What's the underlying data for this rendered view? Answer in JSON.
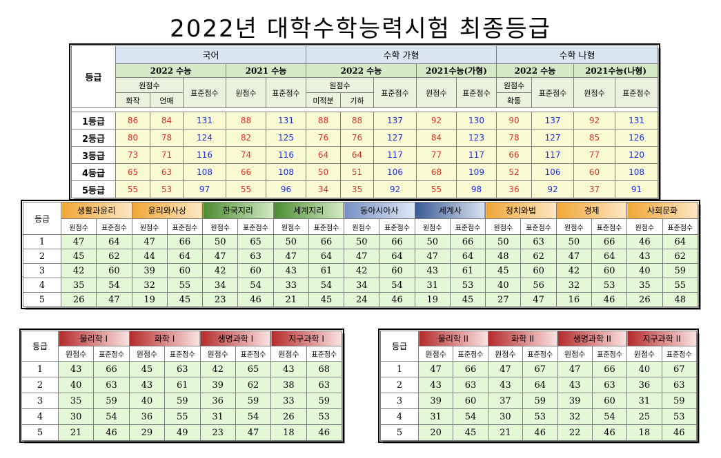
{
  "title": "2022년 대학수학능력시험 최종등급",
  "korean_math": {
    "grade_header": "등급",
    "subjects": [
      "국어",
      "수학 가형",
      "수학 나형"
    ],
    "years": [
      "2022 수능",
      "2021 수능",
      "2022 수능",
      "2021수능(가형)",
      "2022 수능",
      "2021수능(나형)"
    ],
    "raw_label": "원점수",
    "std_label": "표준점수",
    "raw_sub_korean": [
      "화작",
      "언매"
    ],
    "raw_sub_math_ga": [
      "미적분",
      "기하"
    ],
    "raw_sub_math_na": "확통",
    "rows": [
      {
        "label": "1등급",
        "v": [
          "86",
          "84",
          "131",
          "88",
          "131",
          "88",
          "88",
          "137",
          "92",
          "130",
          "90",
          "137",
          "92",
          "131"
        ]
      },
      {
        "label": "2등급",
        "v": [
          "80",
          "78",
          "124",
          "82",
          "125",
          "76",
          "76",
          "127",
          "84",
          "123",
          "78",
          "127",
          "85",
          "126"
        ]
      },
      {
        "label": "3등급",
        "v": [
          "73",
          "71",
          "116",
          "74",
          "116",
          "64",
          "64",
          "117",
          "77",
          "117",
          "66",
          "117",
          "77",
          "120"
        ]
      },
      {
        "label": "4등급",
        "v": [
          "65",
          "63",
          "108",
          "66",
          "108",
          "50",
          "51",
          "106",
          "68",
          "109",
          "52",
          "106",
          "60",
          "108"
        ]
      },
      {
        "label": "5등급",
        "v": [
          "55",
          "53",
          "97",
          "55",
          "96",
          "34",
          "35",
          "92",
          "55",
          "98",
          "36",
          "92",
          "37",
          "91"
        ]
      }
    ],
    "value_colors": {
      "raw": "#d9352b",
      "std": "#1c2fd6"
    }
  },
  "social": {
    "grade_header": "등급",
    "subjects": [
      "생활과윤리",
      "윤리와사상",
      "한국지리",
      "세계지리",
      "동아시아사",
      "세계사",
      "정치와법",
      "경제",
      "사회문화"
    ],
    "raw_label": "원점수",
    "std_label": "표준점수",
    "rows": [
      {
        "label": "1",
        "v": [
          "47",
          "64",
          "47",
          "66",
          "50",
          "65",
          "50",
          "66",
          "50",
          "66",
          "50",
          "66",
          "50",
          "63",
          "50",
          "66",
          "46",
          "64"
        ]
      },
      {
        "label": "2",
        "v": [
          "45",
          "62",
          "44",
          "64",
          "47",
          "63",
          "47",
          "64",
          "47",
          "64",
          "47",
          "64",
          "48",
          "62",
          "47",
          "64",
          "43",
          "62"
        ]
      },
      {
        "label": "3",
        "v": [
          "42",
          "60",
          "39",
          "60",
          "42",
          "60",
          "43",
          "61",
          "42",
          "60",
          "43",
          "61",
          "45",
          "60",
          "42",
          "60",
          "40",
          "59"
        ]
      },
      {
        "label": "4",
        "v": [
          "35",
          "54",
          "32",
          "55",
          "34",
          "54",
          "33",
          "54",
          "34",
          "54",
          "31",
          "53",
          "40",
          "56",
          "32",
          "53",
          "35",
          "55"
        ]
      },
      {
        "label": "5",
        "v": [
          "26",
          "47",
          "19",
          "45",
          "23",
          "46",
          "21",
          "45",
          "24",
          "46",
          "19",
          "45",
          "27",
          "47",
          "16",
          "46",
          "26",
          "48"
        ]
      }
    ]
  },
  "science1": {
    "grade_header": "등급",
    "subjects": [
      "물리학 I",
      "화학 I",
      "생명과학 I",
      "지구과학 I"
    ],
    "raw_label": "원점수",
    "std_label": "표준점수",
    "rows": [
      {
        "label": "1",
        "v": [
          "43",
          "66",
          "45",
          "63",
          "42",
          "65",
          "43",
          "68"
        ]
      },
      {
        "label": "2",
        "v": [
          "40",
          "63",
          "43",
          "61",
          "39",
          "62",
          "38",
          "63"
        ]
      },
      {
        "label": "3",
        "v": [
          "35",
          "59",
          "40",
          "59",
          "36",
          "59",
          "33",
          "59"
        ]
      },
      {
        "label": "4",
        "v": [
          "30",
          "54",
          "36",
          "55",
          "31",
          "54",
          "26",
          "53"
        ]
      },
      {
        "label": "5",
        "v": [
          "21",
          "46",
          "29",
          "49",
          "23",
          "47",
          "18",
          "46"
        ]
      }
    ]
  },
  "science2": {
    "grade_header": "등급",
    "subjects": [
      "물리학 II",
      "화학 II",
      "생명과학 II",
      "지구과학 II"
    ],
    "raw_label": "원점수",
    "std_label": "표준점수",
    "rows": [
      {
        "label": "1",
        "v": [
          "47",
          "66",
          "47",
          "67",
          "47",
          "66",
          "40",
          "67"
        ]
      },
      {
        "label": "2",
        "v": [
          "43",
          "63",
          "43",
          "64",
          "43",
          "63",
          "36",
          "63"
        ]
      },
      {
        "label": "3",
        "v": [
          "39",
          "60",
          "37",
          "59",
          "39",
          "60",
          "31",
          "59"
        ]
      },
      {
        "label": "4",
        "v": [
          "31",
          "54",
          "30",
          "53",
          "32",
          "54",
          "25",
          "53"
        ]
      },
      {
        "label": "5",
        "v": [
          "20",
          "45",
          "21",
          "46",
          "22",
          "46",
          "18",
          "46"
        ]
      }
    ]
  }
}
